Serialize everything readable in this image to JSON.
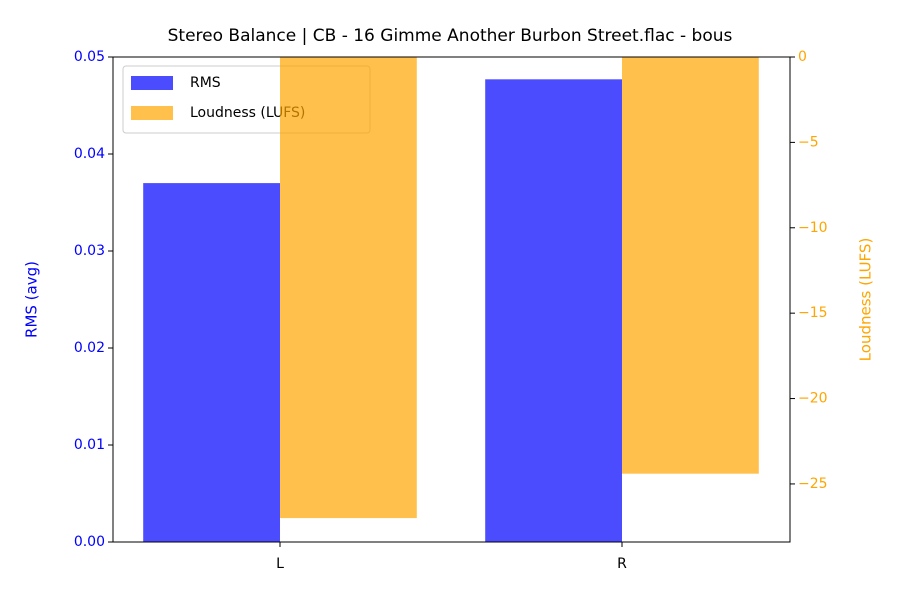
{
  "chart_data": {
    "type": "bar",
    "title": "Stereo Balance | CB - 16 Gimme Another Burbon Street.flac - bous",
    "categories": [
      "L",
      "R"
    ],
    "series": [
      {
        "name": "RMS",
        "color": "#0000ff",
        "values": [
          0.037,
          0.0477
        ]
      },
      {
        "name": "Loudness (LUFS)",
        "color": "#ffa500",
        "values": [
          -27.0,
          -24.4
        ],
        "axis": "y2"
      }
    ],
    "alpha": 0.7,
    "ylabel": "RMS (avg)",
    "y2label": "Loudness (LUFS)",
    "ylim": [
      0,
      0.05
    ],
    "yticks": [
      {
        "value": 0,
        "label": "0.00"
      },
      {
        "value": 0.01,
        "label": "0.01"
      },
      {
        "value": 0.02,
        "label": "0.02"
      },
      {
        "value": 0.03,
        "label": "0.03"
      },
      {
        "value": 0.04,
        "label": "0.04"
      },
      {
        "value": 0.05,
        "label": "0.05"
      }
    ],
    "y2lim": [
      -28.4,
      0
    ],
    "y2ticks": [
      {
        "value": -25,
        "label": "−25"
      },
      {
        "value": -20,
        "label": "−20"
      },
      {
        "value": -15,
        "label": "−15"
      },
      {
        "value": -10,
        "label": "−10"
      },
      {
        "value": -5,
        "label": "−5"
      },
      0
    ],
    "legend": "upper left"
  }
}
